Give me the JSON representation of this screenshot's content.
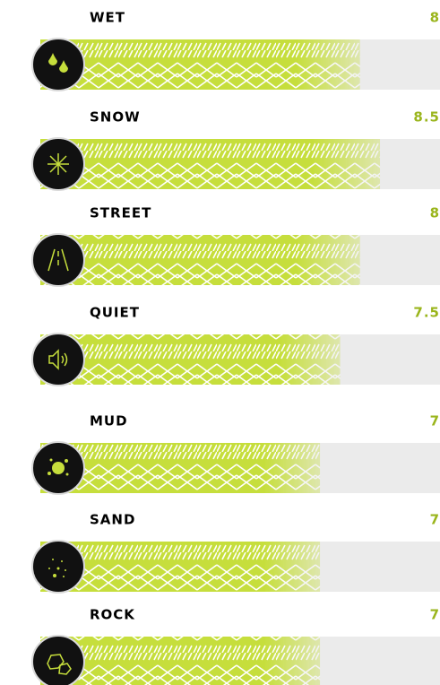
{
  "chart_data": {
    "type": "bar",
    "categories": [
      "WET",
      "SNOW",
      "STREET",
      "QUIET",
      "MUD",
      "SAND",
      "ROCK"
    ],
    "values": [
      8,
      8.5,
      8,
      7.5,
      7,
      7,
      7
    ],
    "xlim": [
      0,
      10
    ],
    "color": "#c6de3c",
    "track_color": "#ebebeb",
    "value_color": "#9ab51c"
  }
}
